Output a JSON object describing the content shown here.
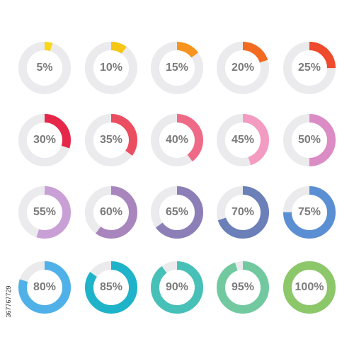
{
  "track_color": "#ebebed",
  "label_color": "#7b7b7b",
  "stock_id": "367767729",
  "rings": [
    {
      "label": "5%",
      "percent": 5,
      "color": "#f9d71c",
      "icon": "progress-ring-5"
    },
    {
      "label": "10%",
      "percent": 10,
      "color": "#f7c614",
      "icon": "progress-ring-10"
    },
    {
      "label": "15%",
      "percent": 15,
      "color": "#f7931e",
      "icon": "progress-ring-15"
    },
    {
      "label": "20%",
      "percent": 20,
      "color": "#f26b21",
      "icon": "progress-ring-20"
    },
    {
      "label": "25%",
      "percent": 25,
      "color": "#ee4a2d",
      "icon": "progress-ring-25"
    },
    {
      "label": "30%",
      "percent": 30,
      "color": "#e5274a",
      "icon": "progress-ring-30"
    },
    {
      "label": "35%",
      "percent": 35,
      "color": "#ec4e61",
      "icon": "progress-ring-35"
    },
    {
      "label": "40%",
      "percent": 40,
      "color": "#ef6a86",
      "icon": "progress-ring-40"
    },
    {
      "label": "45%",
      "percent": 45,
      "color": "#f39bc0",
      "icon": "progress-ring-45"
    },
    {
      "label": "50%",
      "percent": 50,
      "color": "#db8cc4",
      "icon": "progress-ring-50"
    },
    {
      "label": "55%",
      "percent": 55,
      "color": "#c9a0d6",
      "icon": "progress-ring-55"
    },
    {
      "label": "60%",
      "percent": 60,
      "color": "#a886bd",
      "icon": "progress-ring-60"
    },
    {
      "label": "65%",
      "percent": 65,
      "color": "#8c7fb8",
      "icon": "progress-ring-65"
    },
    {
      "label": "70%",
      "percent": 70,
      "color": "#6b7fb8",
      "icon": "progress-ring-70"
    },
    {
      "label": "75%",
      "percent": 75,
      "color": "#5b8fd3",
      "icon": "progress-ring-75"
    },
    {
      "label": "80%",
      "percent": 80,
      "color": "#4fb1e8",
      "icon": "progress-ring-80"
    },
    {
      "label": "85%",
      "percent": 85,
      "color": "#1fb3c9",
      "icon": "progress-ring-85"
    },
    {
      "label": "90%",
      "percent": 90,
      "color": "#47c1b8",
      "icon": "progress-ring-90"
    },
    {
      "label": "95%",
      "percent": 95,
      "color": "#72c9a0",
      "icon": "progress-ring-95"
    },
    {
      "label": "100%",
      "percent": 100,
      "color": "#8cc76a",
      "icon": "progress-ring-100"
    }
  ]
}
